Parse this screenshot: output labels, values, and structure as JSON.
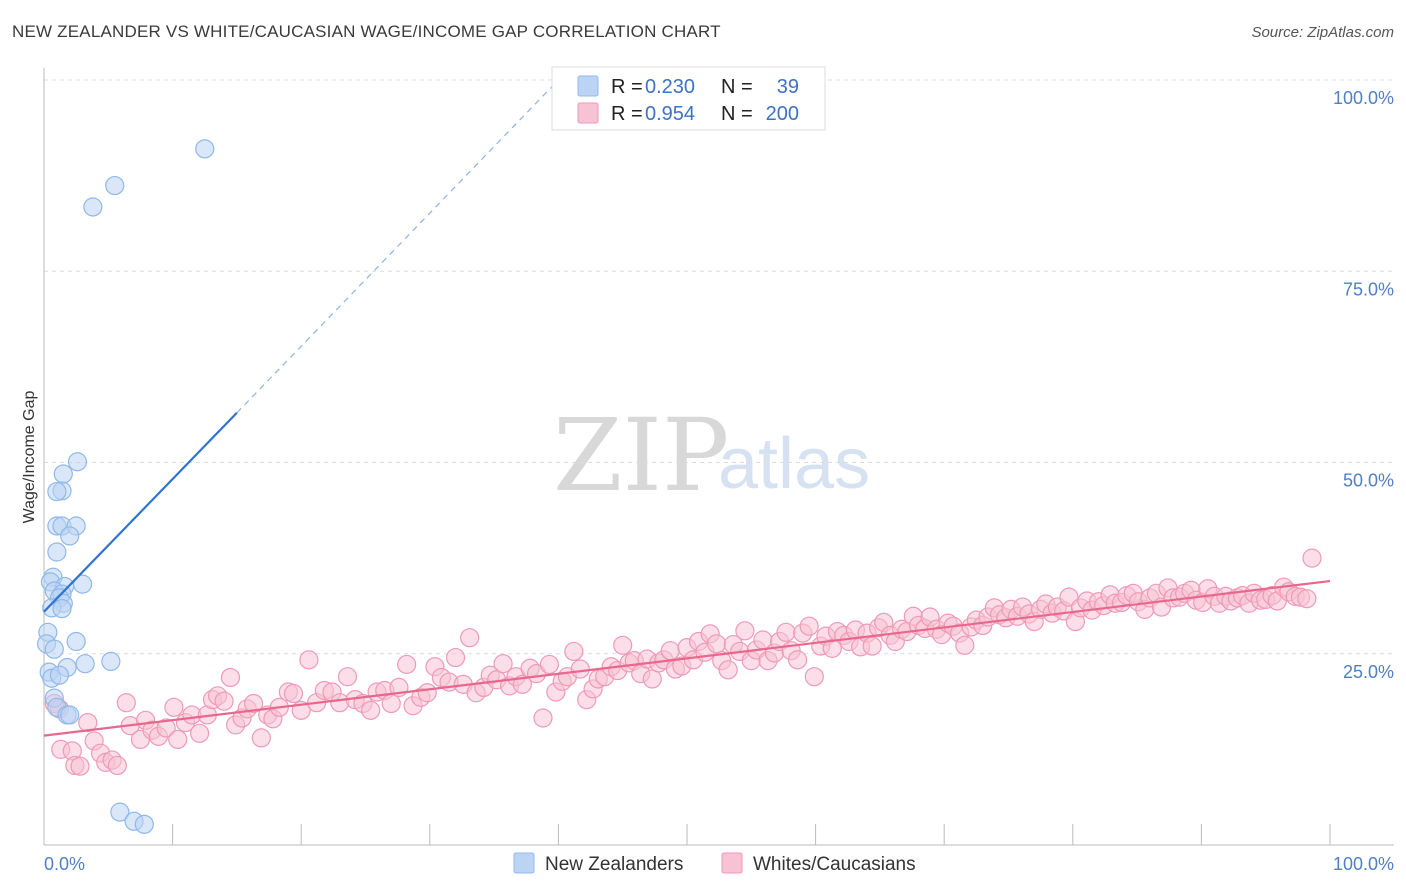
{
  "title": "NEW ZEALANDER VS WHITE/CAUCASIAN WAGE/INCOME GAP CORRELATION CHART",
  "source": "Source: ZipAtlas.com",
  "watermark": {
    "zip": "ZIP",
    "atlas": "atlas"
  },
  "chart_data": {
    "type": "scatter",
    "title": "NEW ZEALANDER VS WHITE/CAUCASIAN WAGE/INCOME GAP CORRELATION CHART",
    "xlabel": "",
    "ylabel": "Wage/Income Gap",
    "xlim": [
      0,
      100
    ],
    "ylim": [
      0,
      105
    ],
    "x_tick_labels": {
      "left": "0.0%",
      "right": "100.0%"
    },
    "y_ticks": [
      {
        "value": 25,
        "label": "25.0%"
      },
      {
        "value": 50,
        "label": "50.0%"
      },
      {
        "value": 75,
        "label": "75.0%"
      },
      {
        "value": 100,
        "label": "100.0%"
      }
    ],
    "legend": {
      "rows": [
        {
          "r_label": "R =",
          "r_value": "0.230",
          "n_label": "N =",
          "n_value": "39"
        },
        {
          "r_label": "R =",
          "r_value": "0.954",
          "n_label": "N =",
          "n_value": "200"
        }
      ]
    },
    "series": [
      {
        "name": "New Zealanders",
        "color": "#8fb8ec",
        "fill": "#bcd4f3",
        "line_color": "#2f74d0",
        "trend": {
          "x0": 0,
          "y0": 30.5,
          "x1": 15,
          "y1": 56.5,
          "dash_to_x": 40,
          "dash_to_y": 100
        },
        "points": [
          [
            12.5,
            91.0
          ],
          [
            5.5,
            86.2
          ],
          [
            3.8,
            83.4
          ],
          [
            2.6,
            50.1
          ],
          [
            1.4,
            46.3
          ],
          [
            1.0,
            46.2
          ],
          [
            1.5,
            48.5
          ],
          [
            1.0,
            41.7
          ],
          [
            1.4,
            41.7
          ],
          [
            2.5,
            41.7
          ],
          [
            2.0,
            40.4
          ],
          [
            1.0,
            38.3
          ],
          [
            0.7,
            35.0
          ],
          [
            0.5,
            34.4
          ],
          [
            1.6,
            33.8
          ],
          [
            3.0,
            34.1
          ],
          [
            0.8,
            33.2
          ],
          [
            1.4,
            32.8
          ],
          [
            1.2,
            32.3
          ],
          [
            1.5,
            31.6
          ],
          [
            0.6,
            31.0
          ],
          [
            1.4,
            30.9
          ],
          [
            0.3,
            27.8
          ],
          [
            0.2,
            26.3
          ],
          [
            2.5,
            26.6
          ],
          [
            0.8,
            25.6
          ],
          [
            3.2,
            23.7
          ],
          [
            1.8,
            23.2
          ],
          [
            5.2,
            24.0
          ],
          [
            0.4,
            22.6
          ],
          [
            0.6,
            21.8
          ],
          [
            1.2,
            22.2
          ],
          [
            0.8,
            19.2
          ],
          [
            1.0,
            18.0
          ],
          [
            1.8,
            17.0
          ],
          [
            2.0,
            17.0
          ],
          [
            5.9,
            4.3
          ],
          [
            7.0,
            3.1
          ],
          [
            7.8,
            2.7
          ]
        ]
      },
      {
        "name": "Whites/Caucasians",
        "color": "#ee9ab7",
        "fill": "#f7c3d4",
        "line_color": "#e8678f",
        "trend": {
          "x0": 0,
          "y0": 14.3,
          "x1": 100,
          "y1": 34.5
        },
        "points": [
          [
            0.8,
            18.5
          ],
          [
            1.2,
            17.8
          ],
          [
            1.3,
            12.5
          ],
          [
            2.2,
            12.3
          ],
          [
            2.4,
            10.4
          ],
          [
            2.8,
            10.3
          ],
          [
            3.4,
            16.0
          ],
          [
            3.9,
            13.6
          ],
          [
            4.4,
            12.0
          ],
          [
            4.8,
            10.8
          ],
          [
            5.3,
            11.1
          ],
          [
            5.7,
            10.4
          ],
          [
            6.4,
            18.6
          ],
          [
            6.7,
            15.6
          ],
          [
            7.5,
            13.8
          ],
          [
            7.9,
            16.3
          ],
          [
            8.4,
            15.0
          ],
          [
            8.9,
            14.2
          ],
          [
            9.5,
            15.3
          ],
          [
            10.1,
            18.0
          ],
          [
            10.4,
            13.8
          ],
          [
            11.0,
            16.0
          ],
          [
            11.5,
            17.0
          ],
          [
            12.1,
            14.6
          ],
          [
            12.7,
            17.0
          ],
          [
            13.1,
            19.0
          ],
          [
            13.5,
            19.5
          ],
          [
            14.0,
            18.8
          ],
          [
            14.5,
            21.9
          ],
          [
            14.9,
            15.7
          ],
          [
            15.4,
            16.6
          ],
          [
            15.8,
            17.8
          ],
          [
            16.3,
            18.5
          ],
          [
            16.9,
            14.0
          ],
          [
            17.4,
            17.0
          ],
          [
            17.8,
            16.5
          ],
          [
            18.3,
            18.0
          ],
          [
            19.0,
            20.0
          ],
          [
            19.4,
            19.8
          ],
          [
            20.0,
            17.6
          ],
          [
            20.6,
            24.2
          ],
          [
            21.2,
            18.6
          ],
          [
            21.8,
            20.2
          ],
          [
            22.4,
            20.0
          ],
          [
            23.0,
            18.6
          ],
          [
            23.6,
            22.0
          ],
          [
            24.2,
            19.0
          ],
          [
            24.8,
            18.5
          ],
          [
            25.4,
            17.6
          ],
          [
            25.9,
            20.0
          ],
          [
            26.5,
            20.2
          ],
          [
            27.0,
            18.5
          ],
          [
            27.6,
            20.6
          ],
          [
            28.2,
            23.6
          ],
          [
            28.7,
            18.2
          ],
          [
            29.3,
            19.3
          ],
          [
            29.8,
            19.9
          ],
          [
            30.4,
            23.3
          ],
          [
            30.9,
            21.9
          ],
          [
            31.5,
            21.3
          ],
          [
            32.0,
            24.5
          ],
          [
            32.6,
            21.0
          ],
          [
            33.1,
            27.1
          ],
          [
            33.6,
            19.9
          ],
          [
            34.2,
            20.6
          ],
          [
            34.7,
            22.2
          ],
          [
            35.2,
            21.6
          ],
          [
            35.7,
            23.7
          ],
          [
            36.2,
            20.8
          ],
          [
            36.7,
            22.0
          ],
          [
            37.2,
            21.0
          ],
          [
            37.8,
            23.1
          ],
          [
            38.3,
            22.4
          ],
          [
            38.8,
            16.6
          ],
          [
            39.3,
            23.6
          ],
          [
            39.8,
            20.0
          ],
          [
            40.3,
            21.4
          ],
          [
            40.7,
            22.0
          ],
          [
            41.2,
            25.3
          ],
          [
            41.7,
            23.0
          ],
          [
            42.2,
            19.0
          ],
          [
            42.7,
            20.4
          ],
          [
            43.1,
            21.7
          ],
          [
            43.6,
            22.0
          ],
          [
            44.1,
            23.3
          ],
          [
            44.6,
            22.8
          ],
          [
            45.0,
            26.1
          ],
          [
            45.5,
            23.8
          ],
          [
            45.9,
            24.1
          ],
          [
            46.4,
            22.4
          ],
          [
            46.9,
            24.3
          ],
          [
            47.3,
            21.7
          ],
          [
            47.8,
            23.8
          ],
          [
            48.2,
            24.2
          ],
          [
            48.7,
            25.4
          ],
          [
            49.1,
            23.0
          ],
          [
            49.6,
            23.4
          ],
          [
            50.0,
            25.8
          ],
          [
            50.5,
            24.2
          ],
          [
            50.9,
            26.6
          ],
          [
            51.4,
            25.2
          ],
          [
            51.8,
            27.6
          ],
          [
            52.3,
            26.3
          ],
          [
            52.7,
            24.1
          ],
          [
            53.2,
            22.9
          ],
          [
            53.6,
            26.2
          ],
          [
            54.1,
            25.3
          ],
          [
            54.5,
            28.0
          ],
          [
            55.0,
            24.1
          ],
          [
            55.4,
            25.5
          ],
          [
            55.9,
            26.8
          ],
          [
            56.3,
            24.1
          ],
          [
            56.8,
            25.1
          ],
          [
            57.2,
            26.6
          ],
          [
            57.7,
            27.8
          ],
          [
            58.1,
            25.4
          ],
          [
            58.6,
            24.2
          ],
          [
            59.0,
            27.7
          ],
          [
            59.5,
            28.6
          ],
          [
            59.9,
            22.0
          ],
          [
            60.4,
            26.0
          ],
          [
            60.8,
            27.3
          ],
          [
            61.3,
            25.7
          ],
          [
            61.7,
            27.9
          ],
          [
            62.2,
            27.4
          ],
          [
            62.6,
            26.6
          ],
          [
            63.1,
            28.1
          ],
          [
            63.5,
            25.9
          ],
          [
            64.0,
            27.7
          ],
          [
            64.4,
            26.0
          ],
          [
            64.9,
            28.4
          ],
          [
            65.3,
            29.1
          ],
          [
            65.8,
            27.4
          ],
          [
            66.2,
            26.6
          ],
          [
            66.7,
            28.2
          ],
          [
            67.1,
            27.9
          ],
          [
            67.6,
            29.9
          ],
          [
            68.0,
            28.7
          ],
          [
            68.5,
            28.3
          ],
          [
            68.9,
            29.8
          ],
          [
            69.4,
            28.2
          ],
          [
            69.8,
            27.5
          ],
          [
            70.3,
            29.0
          ],
          [
            70.7,
            28.6
          ],
          [
            71.2,
            27.7
          ],
          [
            71.6,
            26.1
          ],
          [
            72.1,
            28.5
          ],
          [
            72.5,
            29.4
          ],
          [
            73.0,
            28.7
          ],
          [
            73.4,
            29.8
          ],
          [
            73.9,
            31.0
          ],
          [
            74.3,
            30.1
          ],
          [
            74.8,
            29.7
          ],
          [
            75.2,
            30.8
          ],
          [
            75.7,
            29.9
          ],
          [
            76.1,
            31.1
          ],
          [
            76.6,
            30.2
          ],
          [
            77.0,
            29.2
          ],
          [
            77.5,
            30.8
          ],
          [
            77.9,
            31.5
          ],
          [
            78.4,
            30.3
          ],
          [
            78.8,
            31.1
          ],
          [
            79.3,
            30.6
          ],
          [
            79.7,
            32.4
          ],
          [
            80.2,
            29.2
          ],
          [
            80.6,
            31.0
          ],
          [
            81.1,
            31.9
          ],
          [
            81.5,
            30.7
          ],
          [
            82.0,
            31.8
          ],
          [
            82.4,
            31.3
          ],
          [
            82.9,
            32.7
          ],
          [
            83.3,
            31.6
          ],
          [
            83.8,
            31.7
          ],
          [
            84.2,
            32.6
          ],
          [
            84.7,
            32.9
          ],
          [
            85.1,
            31.8
          ],
          [
            85.6,
            30.8
          ],
          [
            86.0,
            32.3
          ],
          [
            86.5,
            32.9
          ],
          [
            86.9,
            31.1
          ],
          [
            87.4,
            33.6
          ],
          [
            87.8,
            32.3
          ],
          [
            88.3,
            32.4
          ],
          [
            88.7,
            32.9
          ],
          [
            89.2,
            33.3
          ],
          [
            89.6,
            32.0
          ],
          [
            90.1,
            31.7
          ],
          [
            90.5,
            33.5
          ],
          [
            91.0,
            32.5
          ],
          [
            91.4,
            31.6
          ],
          [
            91.9,
            32.5
          ],
          [
            92.3,
            31.9
          ],
          [
            92.8,
            32.3
          ],
          [
            93.2,
            32.6
          ],
          [
            93.7,
            31.6
          ],
          [
            94.1,
            32.9
          ],
          [
            94.6,
            32.0
          ],
          [
            95.0,
            32.1
          ],
          [
            95.5,
            32.6
          ],
          [
            95.9,
            31.9
          ],
          [
            96.4,
            33.7
          ],
          [
            96.8,
            33.1
          ],
          [
            97.3,
            32.5
          ],
          [
            97.7,
            32.4
          ],
          [
            98.2,
            32.2
          ],
          [
            98.6,
            37.5
          ]
        ]
      }
    ]
  }
}
